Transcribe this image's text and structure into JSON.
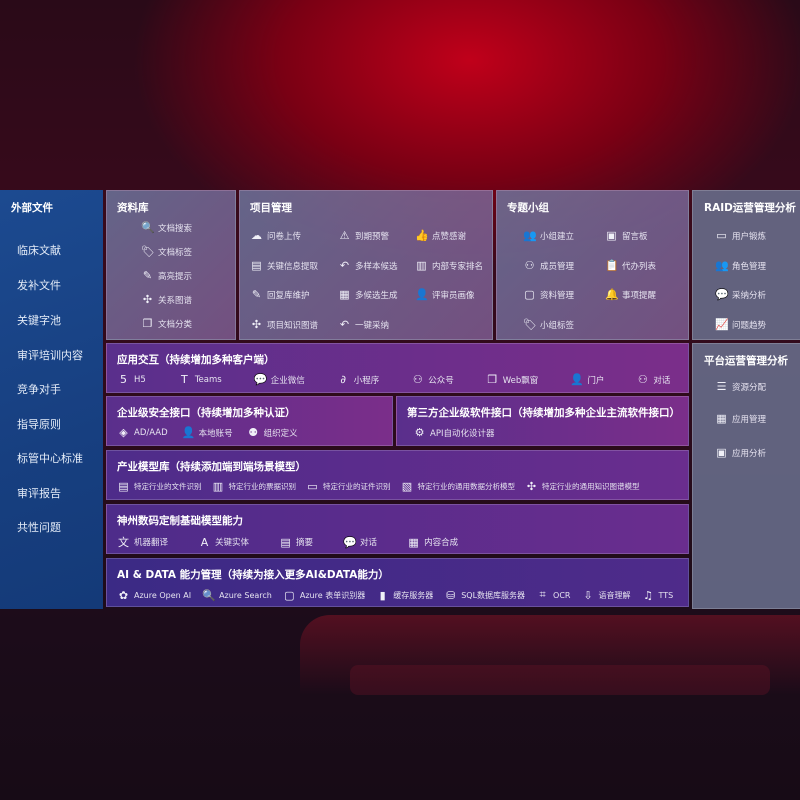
{
  "sidebar": {
    "title": "外部文件",
    "items": [
      "临床文献",
      "发补文件",
      "关键字池",
      "审评培训内容",
      "竞争对手",
      "指导原则",
      "标管中心标准",
      "审评报告",
      "共性问题"
    ]
  },
  "library": {
    "title": "资料库",
    "items": [
      {
        "icon": "document-search-icon",
        "label": "文档搜索"
      },
      {
        "icon": "tag-icon",
        "label": "文档标签"
      },
      {
        "icon": "pen-icon",
        "label": "高亮提示"
      },
      {
        "icon": "graph-icon",
        "label": "关系图谱"
      },
      {
        "icon": "document-category-icon",
        "label": "文档分类"
      }
    ]
  },
  "project": {
    "title": "项目管理",
    "items": [
      {
        "icon": "cloud-upload-icon",
        "label": "问卷上传"
      },
      {
        "icon": "alarm-icon",
        "label": "到期预警"
      },
      {
        "icon": "thumbs-up-icon",
        "label": "点赞感谢"
      },
      {
        "icon": "extract-icon",
        "label": "关键信息提取"
      },
      {
        "icon": "reply-icon",
        "label": "多样本候选"
      },
      {
        "icon": "ranking-icon",
        "label": "内部专家排名"
      },
      {
        "icon": "edit-icon",
        "label": "回复库维护"
      },
      {
        "icon": "puzzle-icon",
        "label": "多候选生成"
      },
      {
        "icon": "user-icon",
        "label": "评审员画像"
      },
      {
        "icon": "knowledge-graph-icon",
        "label": "项目知识图谱"
      },
      {
        "icon": "reply-icon",
        "label": "一键采纳"
      }
    ]
  },
  "group": {
    "title": "专题小组",
    "items": [
      {
        "icon": "group-icon",
        "label": "小组建立"
      },
      {
        "icon": "bbs-icon",
        "label": "留言板"
      },
      {
        "icon": "member-add-icon",
        "label": "成员管理"
      },
      {
        "icon": "clipboard-icon",
        "label": "代办列表"
      },
      {
        "icon": "folder-icon",
        "label": "资料管理"
      },
      {
        "icon": "bell-icon",
        "label": "事项提醒"
      },
      {
        "icon": "tag-icon",
        "label": "小组标签"
      }
    ]
  },
  "raid": {
    "title": "RAID运营管理分析",
    "items": [
      {
        "icon": "id-card-icon",
        "label": "用户锻炼"
      },
      {
        "icon": "users-icon",
        "label": "角色管理"
      },
      {
        "icon": "qa-icon",
        "label": "采纳分析"
      },
      {
        "icon": "trend-icon",
        "label": "问题趋势"
      }
    ]
  },
  "platform": {
    "title": "平台运营管理分析",
    "items": [
      {
        "icon": "checklist-icon",
        "label": "资源分配"
      },
      {
        "icon": "apps-icon",
        "label": "应用管理"
      },
      {
        "icon": "analytics-icon",
        "label": "应用分析"
      }
    ]
  },
  "app_interaction": {
    "title": "应用交互（持续增加多种客户端）",
    "items": [
      {
        "icon": "html5-icon",
        "label": "H5"
      },
      {
        "icon": "teams-icon",
        "label": "Teams"
      },
      {
        "icon": "wechat-icon",
        "label": "企业微信"
      },
      {
        "icon": "mini-program-icon",
        "label": "小程序"
      },
      {
        "icon": "public-account-icon",
        "label": "公众号"
      },
      {
        "icon": "window-icon",
        "label": "Web飘窗"
      },
      {
        "icon": "portal-icon",
        "label": "门户"
      },
      {
        "icon": "chat-users-icon",
        "label": "对话"
      }
    ]
  },
  "security": {
    "title": "企业级安全接口（持续增加多种认证）",
    "items": [
      {
        "icon": "aad-icon",
        "label": "AD/AAD"
      },
      {
        "icon": "local-account-icon",
        "label": "本地账号"
      },
      {
        "icon": "org-icon",
        "label": "组织定义"
      }
    ]
  },
  "third_party": {
    "title": "第三方企业级软件接口（持续增加多种企业主流软件接口）",
    "items": [
      {
        "icon": "api-gear-icon",
        "label": "API自动化设计器"
      }
    ]
  },
  "industry": {
    "title": "产业模型库（持续添加端到端场景模型）",
    "items": [
      {
        "icon": "file-icon",
        "label": "特定行业的文件识别"
      },
      {
        "icon": "receipt-icon",
        "label": "特定行业的票据识别"
      },
      {
        "icon": "id-card-icon",
        "label": "特定行业的证件识别"
      },
      {
        "icon": "chart-icon",
        "label": "特定行业的通用数据分析模型"
      },
      {
        "icon": "knowledge-graph-icon",
        "label": "特定行业的通用知识图谱模型"
      }
    ]
  },
  "base_model": {
    "title": "神州数码定制基础模型能力",
    "items": [
      {
        "icon": "translate-icon",
        "label": "机器翻译"
      },
      {
        "icon": "entity-icon",
        "label": "关键实体"
      },
      {
        "icon": "summary-icon",
        "label": "摘要"
      },
      {
        "icon": "chat-icon",
        "label": "对话"
      },
      {
        "icon": "compose-icon",
        "label": "内容合成"
      }
    ]
  },
  "ai_data": {
    "title": "AI & DATA 能力管理（持续为接入更多AI&DATA能力）",
    "items": [
      {
        "icon": "openai-icon",
        "label": "Azure Open AI"
      },
      {
        "icon": "search-doc-icon",
        "label": "Azure Search"
      },
      {
        "icon": "form-recognizer-icon",
        "label": "Azure 表单识别器"
      },
      {
        "icon": "cache-server-icon",
        "label": "缓存服务器"
      },
      {
        "icon": "sql-icon",
        "label": "SQL数据库服务器"
      },
      {
        "icon": "ocr-icon",
        "label": "OCR"
      },
      {
        "icon": "speech-icon",
        "label": "语音理解"
      },
      {
        "icon": "tts-icon",
        "label": "TTS"
      }
    ]
  }
}
